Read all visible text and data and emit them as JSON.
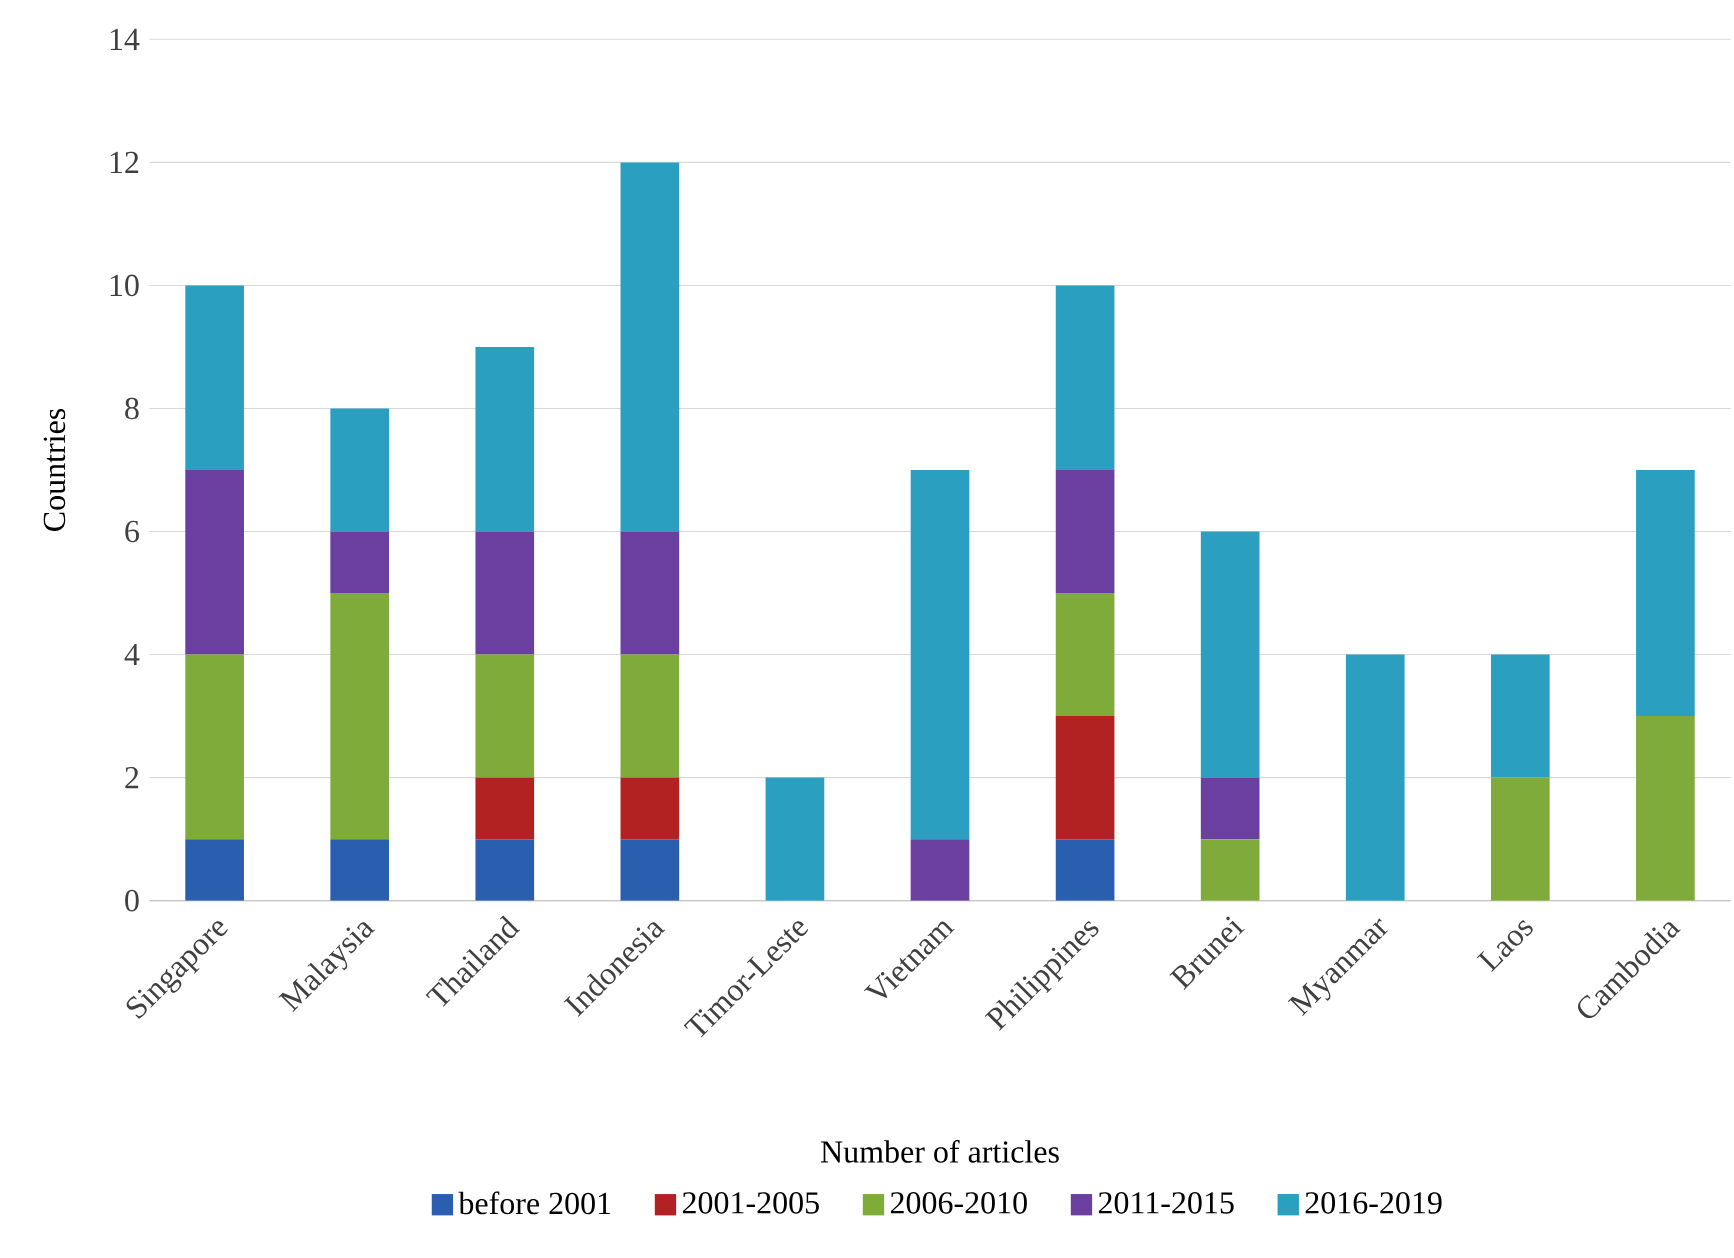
{
  "chart_data": {
    "type": "bar",
    "stacked": true,
    "xlabel": "Number of articles",
    "ylabel": "Countries",
    "categories": [
      "Singapore",
      "Malaysia",
      "Thailand",
      "Indonesia",
      "Timor-Leste",
      "Vietnam",
      "Philippines",
      "Brunei",
      "Myanmar",
      "Laos",
      "Cambodia"
    ],
    "series": [
      {
        "name": "before 2001",
        "color": "#2a5fb0",
        "values": [
          1,
          1,
          1,
          1,
          0,
          0,
          1,
          0,
          0,
          0,
          0
        ]
      },
      {
        "name": "2001-2005",
        "color": "#b22222",
        "values": [
          0,
          0,
          1,
          1,
          0,
          0,
          2,
          0,
          0,
          0,
          0
        ]
      },
      {
        "name": "2006-2010",
        "color": "#7fab3b",
        "values": [
          3,
          4,
          2,
          2,
          0,
          0,
          2,
          1,
          0,
          2,
          3
        ]
      },
      {
        "name": "2011-2015",
        "color": "#6b3fa0",
        "values": [
          3,
          1,
          2,
          2,
          0,
          1,
          2,
          1,
          0,
          0,
          0
        ]
      },
      {
        "name": "2016-2019",
        "color": "#2a9fc0",
        "values": [
          3,
          2,
          3,
          6,
          2,
          6,
          3,
          4,
          4,
          2,
          4
        ]
      }
    ],
    "ylim": [
      0,
      14
    ],
    "yticks": [
      0,
      2,
      4,
      6,
      8,
      10,
      12,
      14
    ],
    "grid": "y",
    "legend": "bottom"
  }
}
